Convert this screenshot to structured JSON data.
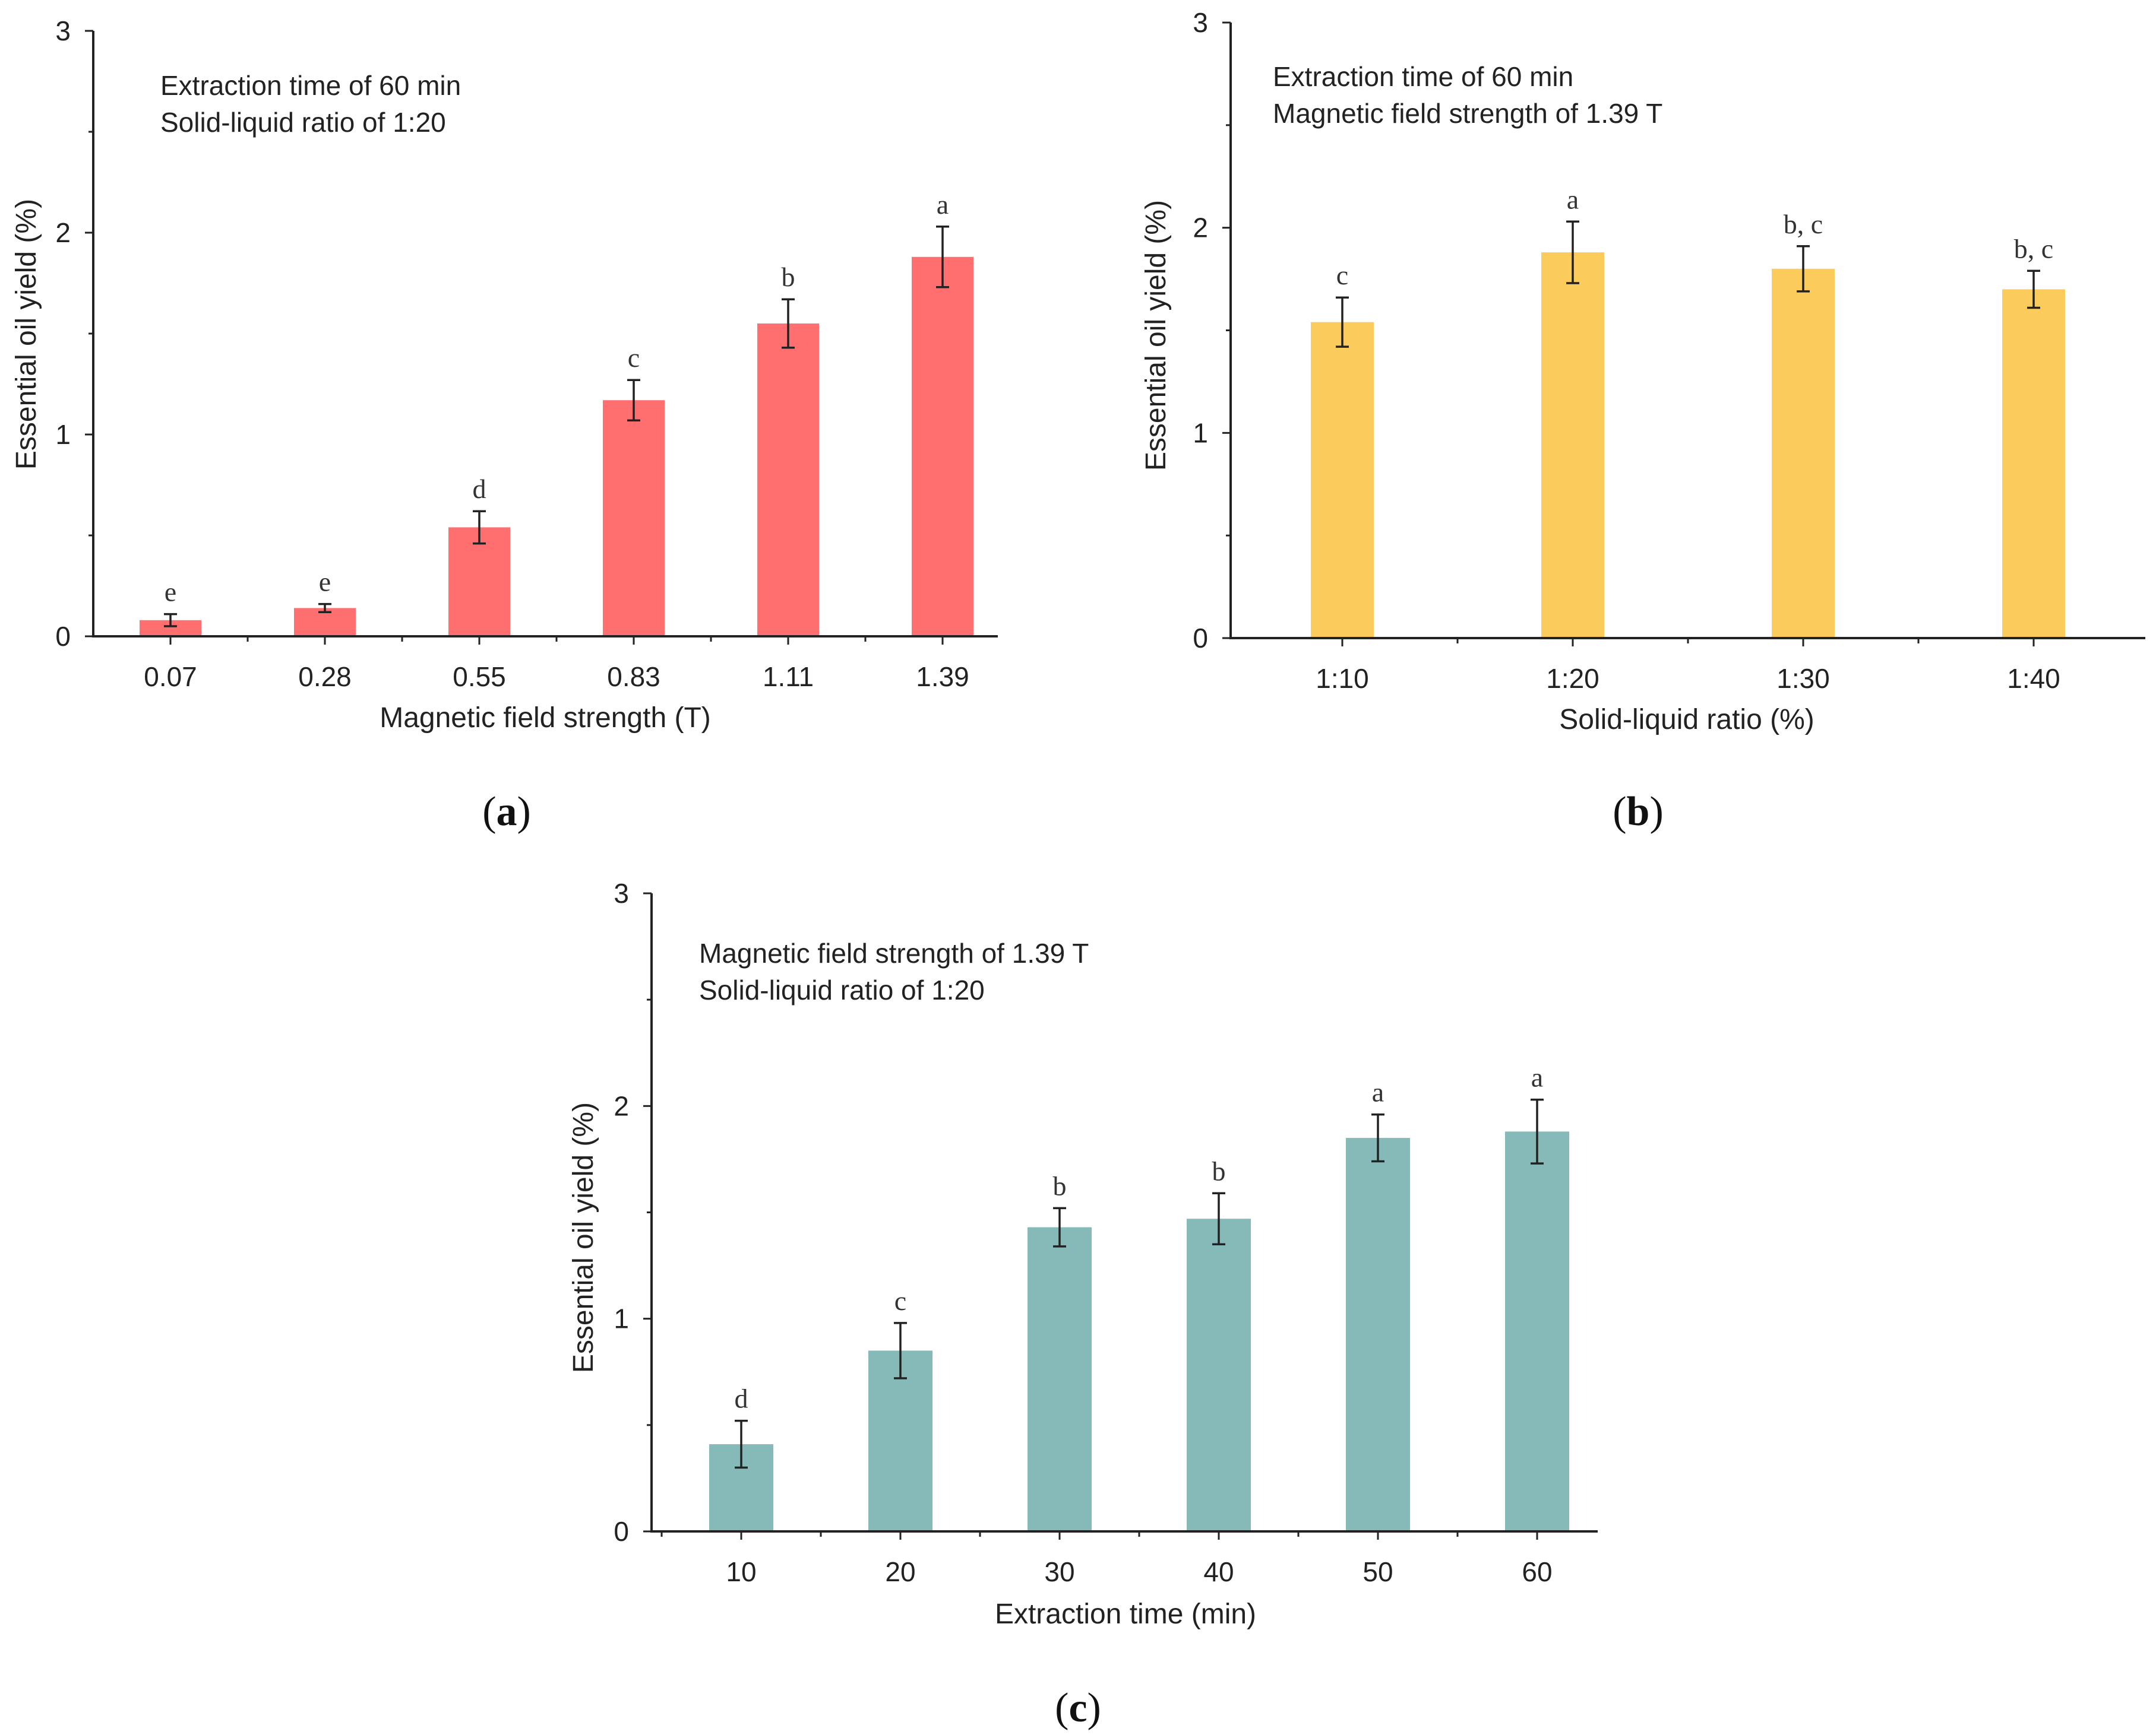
{
  "chart_data": [
    {
      "type": "bar",
      "panel": "a",
      "ylabel": "Essential oil yield (%)",
      "xlabel": "Magnetic field strength (T)",
      "ylim": [
        0,
        3
      ],
      "y_ticks": [
        "0",
        "1",
        "2",
        "3"
      ],
      "annotations": [
        "Extraction time of 60 min",
        "Solid-liquid ratio of 1:20"
      ],
      "bar_color": "#ff6f6f",
      "categories": [
        "0.07",
        "0.28",
        "0.55",
        "0.83",
        "1.11",
        "1.39"
      ],
      "values": [
        0.08,
        0.14,
        0.54,
        1.17,
        1.55,
        1.88
      ],
      "errors": [
        0.03,
        0.02,
        0.08,
        0.1,
        0.12,
        0.15
      ],
      "letters": [
        "e",
        "e",
        "d",
        "c",
        "b",
        "a"
      ]
    },
    {
      "type": "bar",
      "panel": "b",
      "ylabel": "Essential oil yield (%)",
      "xlabel": "Solid-liquid ratio (%)",
      "ylim": [
        0,
        3
      ],
      "y_ticks": [
        "0",
        "1",
        "2",
        "3"
      ],
      "annotations": [
        "Extraction time of 60 min",
        "Magnetic field strength of 1.39 T"
      ],
      "bar_color": "#fbcb5c",
      "categories": [
        "1:10",
        "1:20",
        "1:30",
        "1:40"
      ],
      "values": [
        1.54,
        1.88,
        1.8,
        1.7
      ],
      "errors": [
        0.12,
        0.15,
        0.11,
        0.09
      ],
      "letters": [
        "c",
        "a",
        "b, c",
        "b, c"
      ]
    },
    {
      "type": "bar",
      "panel": "c",
      "ylabel": "Essential oil  yield (%)",
      "xlabel": "Extraction time (min)",
      "ylim": [
        0,
        3
      ],
      "y_ticks": [
        "0",
        "1",
        "2",
        "3"
      ],
      "annotations": [
        "Magnetic field strength of 1.39 T",
        "Solid-liquid ratio of 1:20"
      ],
      "bar_color": "#85bab9",
      "categories": [
        "10",
        "20",
        "30",
        "40",
        "50",
        "60"
      ],
      "values": [
        0.41,
        0.85,
        1.43,
        1.47,
        1.85,
        1.88
      ],
      "errors": [
        0.11,
        0.13,
        0.09,
        0.12,
        0.11,
        0.15
      ],
      "letters": [
        "d",
        "c",
        "b",
        "b",
        "a",
        "a"
      ]
    }
  ],
  "panel_labels": [
    {
      "open": "(",
      "letter": "a",
      "close": ")"
    },
    {
      "open": "(",
      "letter": "b",
      "close": ")"
    },
    {
      "open": "(",
      "letter": "c",
      "close": ")"
    }
  ]
}
